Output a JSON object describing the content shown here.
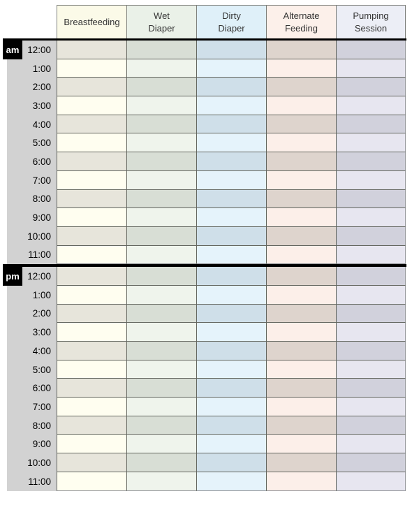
{
  "table": {
    "columns": [
      {
        "id": "breastfeeding",
        "label": "Breastfeeding",
        "header_bg": "#fbfae8",
        "row_light": "#fffef0",
        "row_dark": "#e7e5db"
      },
      {
        "id": "wet-diaper",
        "label": "Wet\nDiaper",
        "header_bg": "#eaf1e8",
        "row_light": "#eff4ec",
        "row_dark": "#d8ded5"
      },
      {
        "id": "dirty-diaper",
        "label": "Dirty\nDiaper",
        "header_bg": "#dff0f9",
        "row_light": "#e5f3fb",
        "row_dark": "#cfdfe9"
      },
      {
        "id": "alternate-feeding",
        "label": "Alternate\nFeeding",
        "header_bg": "#fcf0ea",
        "row_light": "#fcefe9",
        "row_dark": "#ded4cd"
      },
      {
        "id": "pumping-session",
        "label": "Pumping\nSession",
        "header_bg": "#eceef6",
        "row_light": "#e7e6f0",
        "row_dark": "#d1d1dc"
      }
    ],
    "sections": [
      {
        "id": "am",
        "badge": "am",
        "times": [
          "12:00",
          "1:00",
          "2:00",
          "3:00",
          "4:00",
          "5:00",
          "6:00",
          "7:00",
          "8:00",
          "9:00",
          "10:00",
          "11:00"
        ]
      },
      {
        "id": "pm",
        "badge": "pm",
        "times": [
          "12:00",
          "1:00",
          "2:00",
          "3:00",
          "4:00",
          "5:00",
          "6:00",
          "7:00",
          "8:00",
          "9:00",
          "10:00",
          "11:00"
        ]
      }
    ],
    "colors": {
      "time_column_bg": "#d2d2d2",
      "badge_bg": "#000000",
      "badge_text": "#ffffff",
      "grid_line": "#63665f",
      "header_border": "#7e807c",
      "section_divider": "#000000",
      "page_bg": "#ffffff"
    }
  }
}
